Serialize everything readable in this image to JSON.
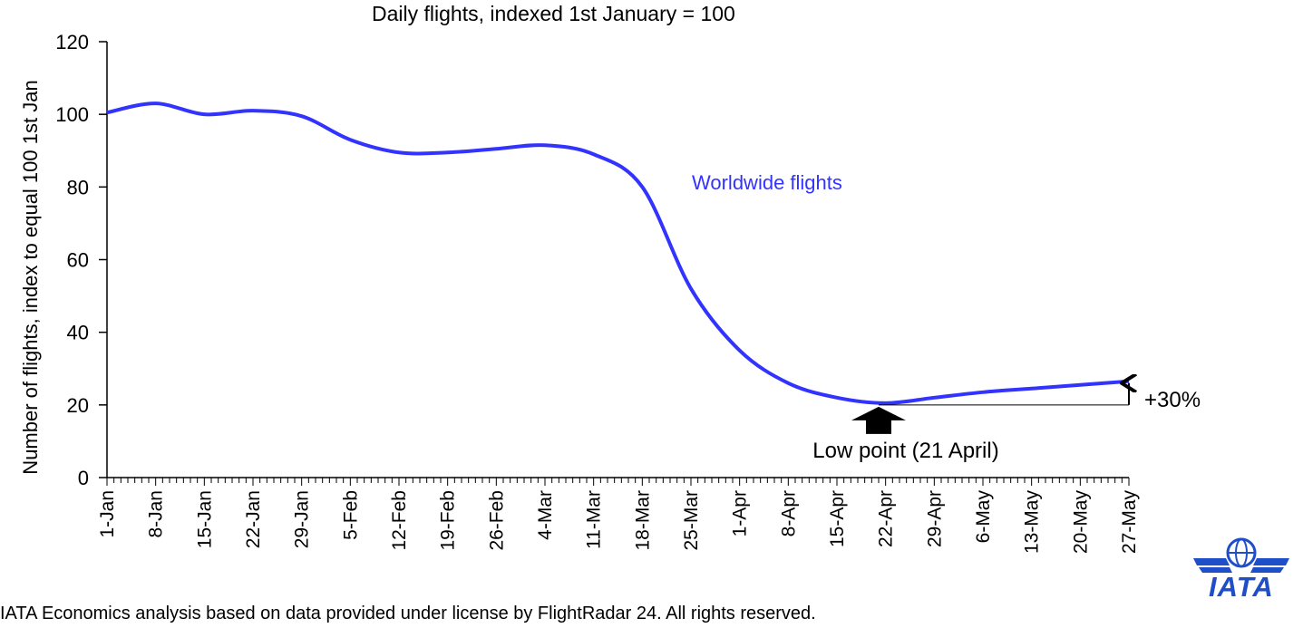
{
  "chart_data": {
    "type": "line",
    "title": "Daily flights, indexed 1st January = 100",
    "ylabel": "Number of flights, index to equal 100 1st Jan",
    "xlabel": "",
    "ylim": [
      0,
      120
    ],
    "yticks": [
      "0",
      "20",
      "40",
      "60",
      "80",
      "100",
      "120"
    ],
    "x_tick_labels": [
      "1-Jan",
      "8-Jan",
      "15-Jan",
      "22-Jan",
      "29-Jan",
      "5-Feb",
      "12-Feb",
      "19-Feb",
      "26-Feb",
      "4-Mar",
      "11-Mar",
      "18-Mar",
      "25-Mar",
      "1-Apr",
      "8-Apr",
      "15-Apr",
      "22-Apr",
      "29-Apr",
      "6-May",
      "13-May",
      "20-May",
      "27-May"
    ],
    "series": [
      {
        "name": "Worldwide flights",
        "color": "#3333ff",
        "points": [
          [
            "1-Jan",
            100.5
          ],
          [
            "8-Jan",
            103
          ],
          [
            "15-Jan",
            100
          ],
          [
            "22-Jan",
            101
          ],
          [
            "29-Jan",
            99.5
          ],
          [
            "5-Feb",
            93
          ],
          [
            "12-Feb",
            89.5
          ],
          [
            "19-Feb",
            89.5
          ],
          [
            "26-Feb",
            90.5
          ],
          [
            "4-Mar",
            91.5
          ],
          [
            "11-Mar",
            89
          ],
          [
            "18-Mar",
            80
          ],
          [
            "25-Mar",
            52
          ],
          [
            "1-Apr",
            35
          ],
          [
            "8-Apr",
            26
          ],
          [
            "15-Apr",
            22
          ],
          [
            "22-Apr",
            20.5
          ],
          [
            "29-Apr",
            22
          ],
          [
            "6-May",
            23.5
          ],
          [
            "13-May",
            24.5
          ],
          [
            "20-May",
            25.5
          ],
          [
            "27-May",
            26.5
          ]
        ]
      }
    ],
    "annotations": {
      "series_label": "Worldwide flights",
      "low_point_label": "Low point (21 April)",
      "change_label": "+30%",
      "low_point_value": 20.5,
      "latest_value": 26.5
    },
    "grid": false,
    "legend": "none"
  },
  "footer": {
    "source": "IATA Economics analysis based on data provided under license by FlightRadar 24. All rights reserved."
  },
  "logo": {
    "text": "IATA",
    "color": "#1e4fc9"
  }
}
